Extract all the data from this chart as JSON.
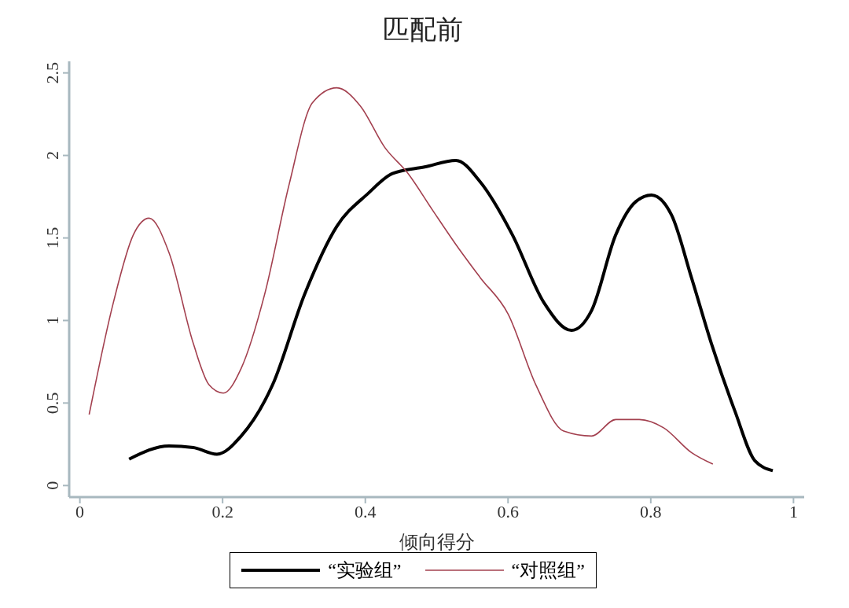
{
  "chart_data": {
    "type": "line",
    "title": "匹配前",
    "xlabel": "倾向得分",
    "legend": "bottom",
    "line_style": "solid",
    "xlim": [
      -0.015,
      1.015
    ],
    "xticks": [
      0,
      0.2,
      0.4,
      0.6,
      0.8,
      1
    ],
    "ylim": [
      -0.07,
      2.57
    ],
    "yticks": [
      0,
      0.5,
      1,
      1.5,
      2,
      2.5
    ],
    "series": [
      {
        "name": "“实验组”",
        "color": "#000000",
        "x": [
          0.069,
          0.125,
          0.159,
          0.192,
          0.226,
          0.27,
          0.315,
          0.36,
          0.404,
          0.438,
          0.483,
          0.527,
          0.561,
          0.606,
          0.65,
          0.689,
          0.717,
          0.751,
          0.779,
          0.801,
          0.829,
          0.857,
          0.885,
          0.918,
          0.946,
          0.971
        ],
        "values": [
          0.16,
          0.24,
          0.23,
          0.19,
          0.3,
          0.61,
          1.16,
          1.57,
          1.77,
          1.89,
          1.93,
          1.97,
          1.84,
          1.52,
          1.11,
          0.94,
          1.06,
          1.52,
          1.72,
          1.76,
          1.64,
          1.26,
          0.86,
          0.45,
          0.15,
          0.09
        ]
      },
      {
        "name": "“对照组”",
        "color": "#a3404f",
        "x": [
          0.013,
          0.047,
          0.075,
          0.097,
          0.125,
          0.159,
          0.181,
          0.201,
          0.226,
          0.259,
          0.293,
          0.326,
          0.36,
          0.393,
          0.427,
          0.46,
          0.494,
          0.527,
          0.561,
          0.6,
          0.639,
          0.678,
          0.717,
          0.751,
          0.784,
          0.818,
          0.857,
          0.887
        ],
        "values": [
          0.43,
          1.11,
          1.52,
          1.62,
          1.41,
          0.86,
          0.61,
          0.56,
          0.71,
          1.16,
          1.82,
          2.32,
          2.41,
          2.3,
          2.05,
          1.89,
          1.67,
          1.46,
          1.26,
          1.04,
          0.61,
          0.33,
          0.3,
          0.4,
          0.4,
          0.35,
          0.2,
          0.13
        ]
      }
    ]
  }
}
